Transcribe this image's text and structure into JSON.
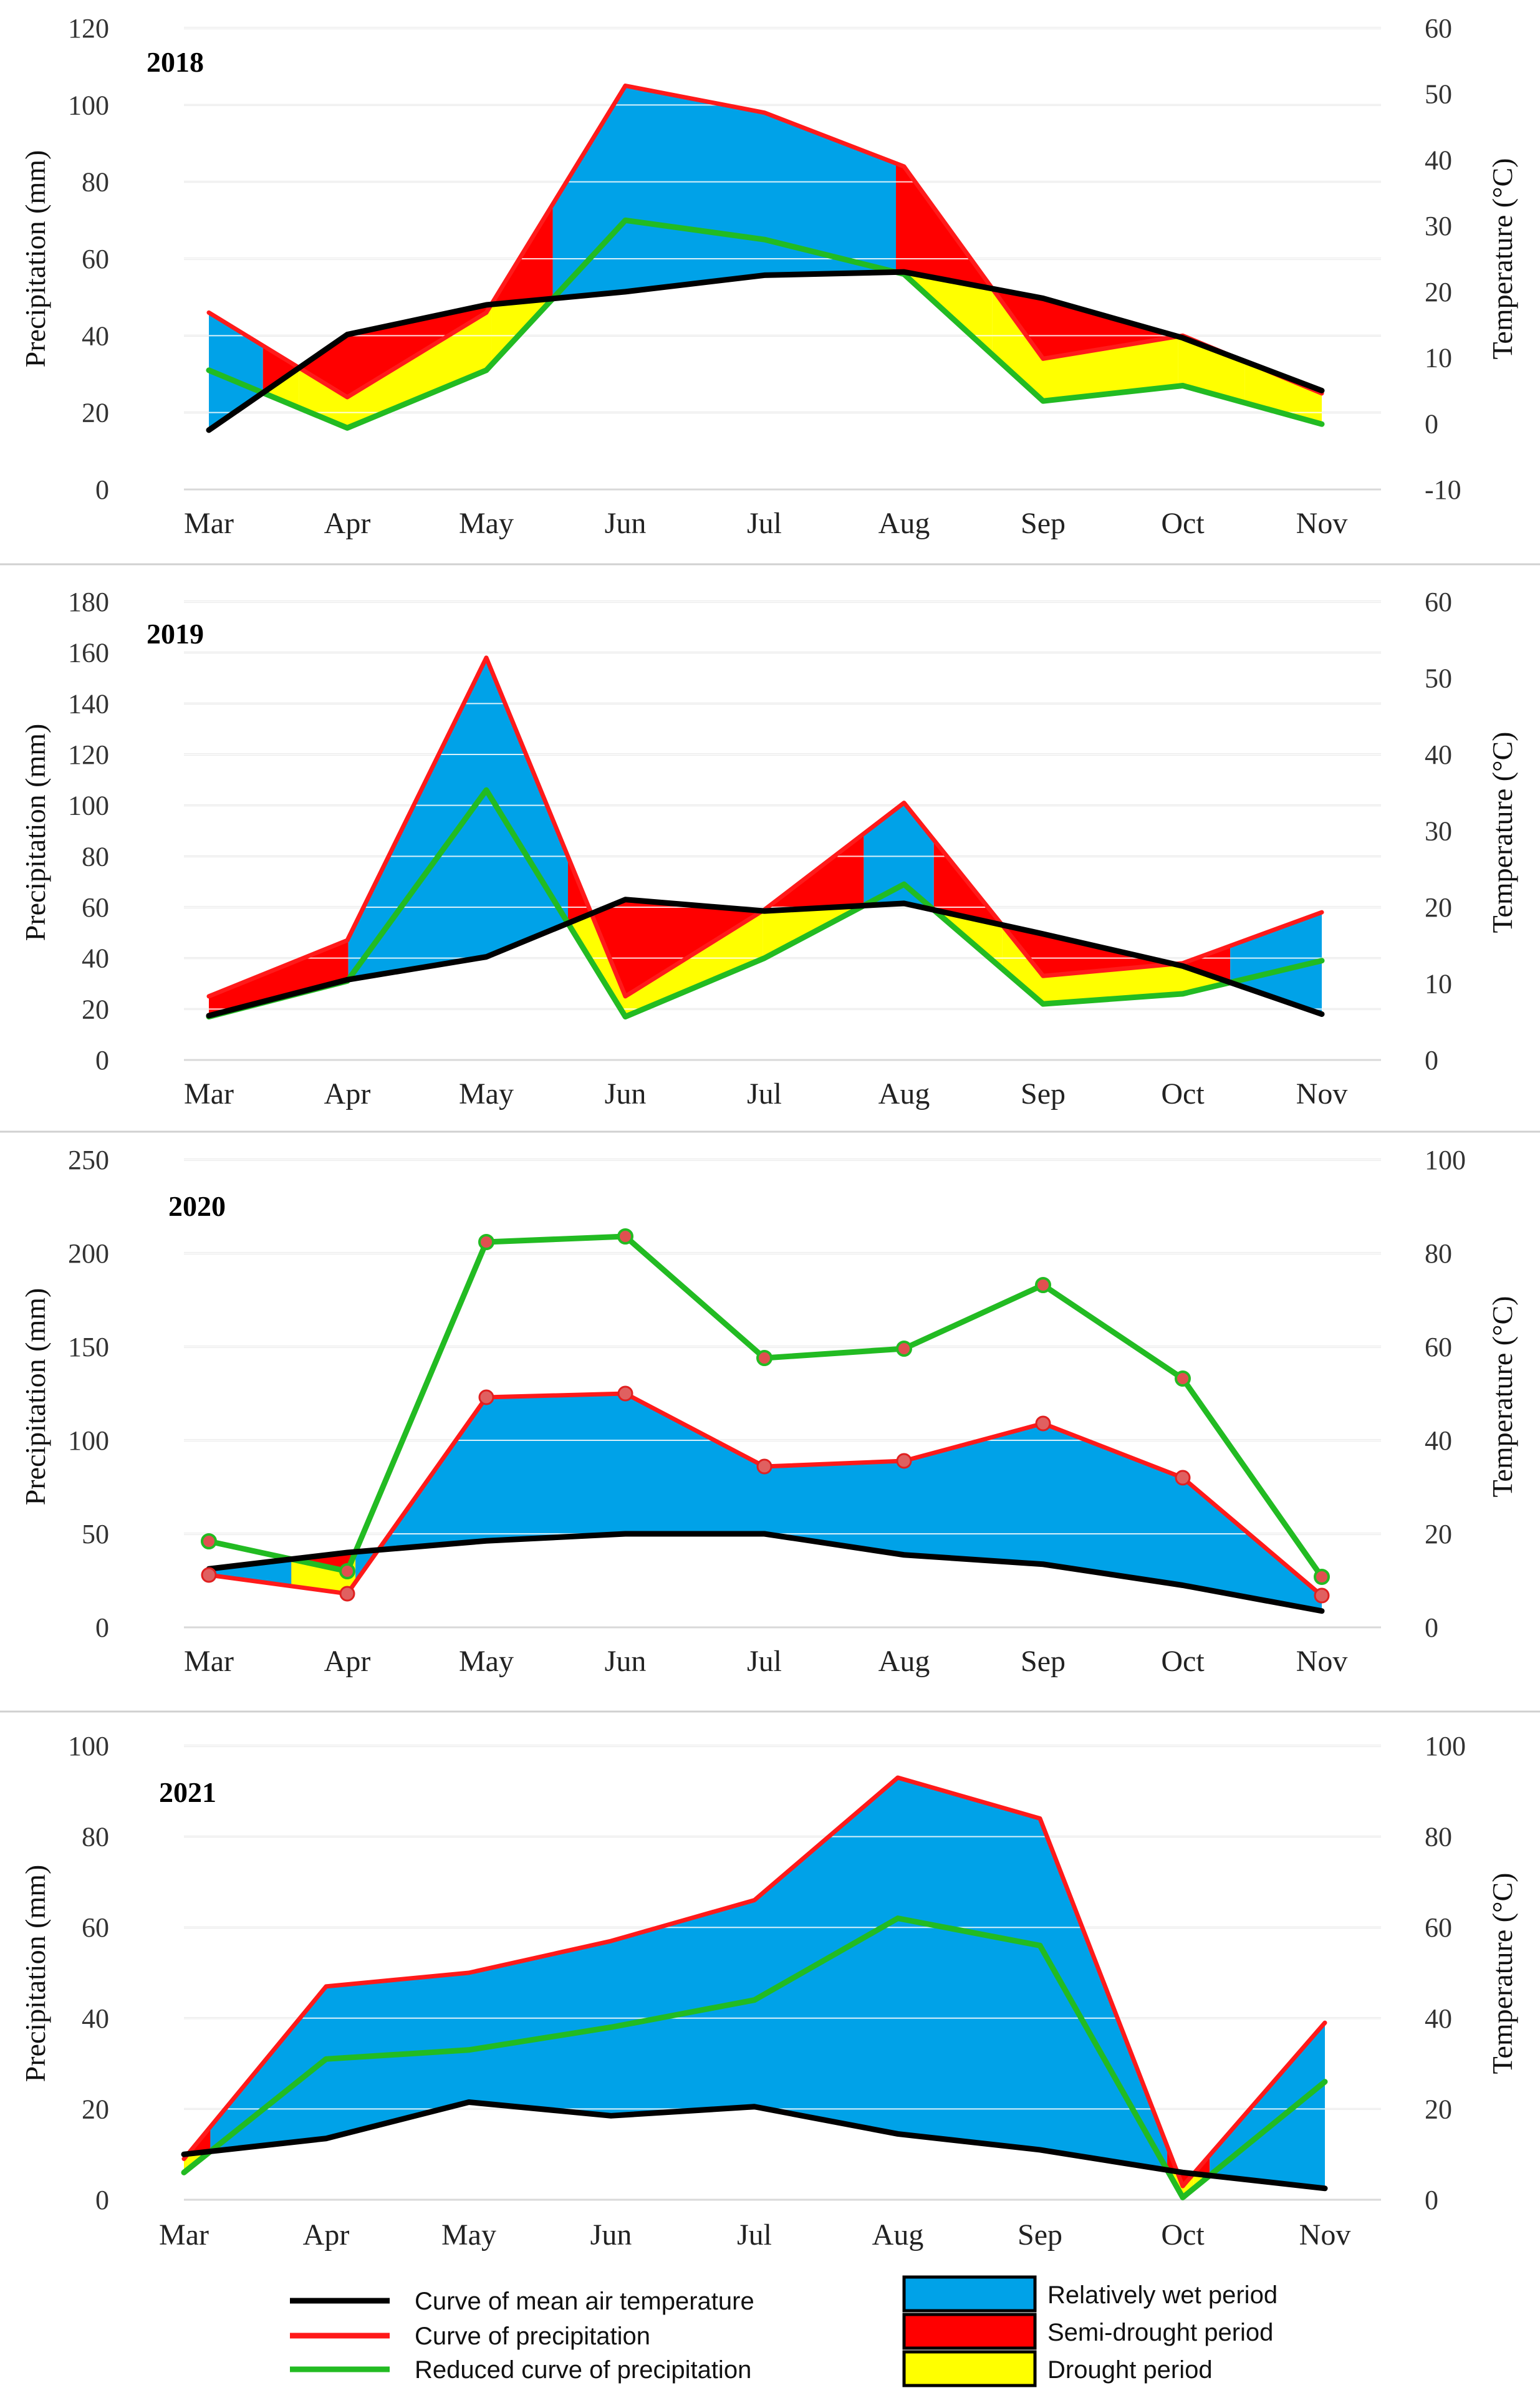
{
  "chart_data": [
    {
      "type": "area",
      "title": "2018",
      "categories": [
        "Mar",
        "Apr",
        "May",
        "Jun",
        "Jul",
        "Aug",
        "Sep",
        "Oct",
        "Nov"
      ],
      "ylabel": "Precipitation (mm)",
      "y2label": "Temperature (°C)",
      "ylim": [
        0,
        120
      ],
      "yticks": [
        0,
        20,
        40,
        60,
        80,
        100,
        120
      ],
      "y2lim": [
        -10,
        60
      ],
      "y2ticks": [
        -10,
        0,
        10,
        20,
        30,
        40,
        50,
        60
      ],
      "markers": false,
      "series": [
        {
          "name": "Curve of mean air temperature",
          "axis": "right",
          "values": [
            -1,
            13.5,
            18,
            20,
            22.5,
            23,
            19,
            13,
            5
          ]
        },
        {
          "name": "Curve of precipitation",
          "axis": "left",
          "values": [
            46,
            24,
            46,
            105,
            98,
            84,
            34,
            40,
            25
          ]
        },
        {
          "name": "Reduced curve of precipitation",
          "axis": "left",
          "values": [
            31,
            16,
            31,
            70,
            65,
            56,
            23,
            27,
            17
          ]
        }
      ]
    },
    {
      "type": "area",
      "title": "2019",
      "categories": [
        "Mar",
        "Apr",
        "May",
        "Jun",
        "Jul",
        "Aug",
        "Sep",
        "Oct",
        "Nov"
      ],
      "ylabel": "Precipitation (mm)",
      "y2label": "Temperature (°C)",
      "ylim": [
        0,
        180
      ],
      "yticks": [
        0,
        20,
        40,
        60,
        80,
        100,
        120,
        140,
        160,
        180
      ],
      "y2lim": [
        0,
        60
      ],
      "y2ticks": [
        0,
        10,
        20,
        30,
        40,
        50,
        60
      ],
      "markers": false,
      "series": [
        {
          "name": "Curve of mean air temperature",
          "axis": "right",
          "values": [
            5.8,
            10.5,
            13.5,
            21,
            19.5,
            20.5,
            16.5,
            12.3,
            6
          ]
        },
        {
          "name": "Curve of precipitation",
          "axis": "left",
          "values": [
            25,
            47,
            158,
            25,
            59,
            101,
            33,
            38,
            58
          ]
        },
        {
          "name": "Reduced curve of precipitation",
          "axis": "left",
          "values": [
            17,
            31,
            106,
            17,
            40,
            69,
            22,
            26,
            39
          ]
        }
      ]
    },
    {
      "type": "area",
      "title": "2020",
      "categories": [
        "Mar",
        "Apr",
        "May",
        "Jun",
        "Jul",
        "Aug",
        "Sep",
        "Oct",
        "Nov"
      ],
      "ylabel": "Precipitation (mm)",
      "y2label": "Temperature (°C)",
      "ylim": [
        0,
        250
      ],
      "yticks": [
        0,
        50,
        100,
        150,
        200,
        250
      ],
      "y2lim": [
        0,
        100
      ],
      "y2ticks": [
        0,
        20,
        40,
        60,
        80,
        100
      ],
      "markers": true,
      "series": [
        {
          "name": "Curve of mean air temperature",
          "axis": "right",
          "values": [
            12.5,
            16,
            18.5,
            20,
            20,
            15.5,
            13.5,
            9,
            3.5
          ]
        },
        {
          "name": "Curve of precipitation",
          "axis": "left",
          "values": [
            28,
            18,
            123,
            125,
            86,
            89,
            109,
            80,
            17
          ]
        },
        {
          "name": "Reduced curve of precipitation",
          "axis": "left",
          "values": [
            46,
            30,
            206,
            209,
            144,
            149,
            183,
            133,
            27
          ]
        }
      ]
    },
    {
      "type": "area",
      "title": "2021",
      "categories": [
        "Mar",
        "Apr",
        "May",
        "Jun",
        "Jul",
        "Aug",
        "Sep",
        "Oct",
        "Nov"
      ],
      "ylabel": "Precipitation (mm)",
      "y2label": "Temperature (°C)",
      "ylim": [
        0,
        100
      ],
      "yticks": [
        0,
        20,
        40,
        60,
        80,
        100
      ],
      "y2lim": [
        0,
        100
      ],
      "y2ticks": [
        0,
        20,
        40,
        60,
        80,
        100
      ],
      "markers": false,
      "series": [
        {
          "name": "Curve of mean air temperature",
          "axis": "right",
          "values": [
            10,
            13.5,
            21.5,
            18.5,
            20.5,
            14.5,
            11,
            6,
            2.5
          ]
        },
        {
          "name": "Curve of precipitation",
          "axis": "left",
          "values": [
            9,
            47,
            50,
            57,
            66,
            93,
            84,
            3,
            39
          ]
        },
        {
          "name": "Reduced curve of precipitation",
          "axis": "left",
          "values": [
            6,
            31,
            33,
            38,
            44,
            62,
            56,
            0.5,
            26
          ]
        }
      ]
    }
  ],
  "legend": {
    "lines": [
      {
        "label": "Curve of mean air temperature",
        "color": "#000000"
      },
      {
        "label": "Curve of precipitation",
        "color": "#ff1a1a"
      },
      {
        "label": "Reduced curve of precipitation",
        "color": "#22bb22"
      }
    ],
    "boxes": [
      {
        "label": "Relatively wet period",
        "color": "#00a2e8"
      },
      {
        "label": "Semi-drought period",
        "color": "#ff0000"
      },
      {
        "label": "Drought period",
        "color": "#ffff00"
      }
    ]
  },
  "colors": {
    "wet": "#00a2e8",
    "semi": "#ff0000",
    "drought": "#ffff00",
    "temp": "#000000",
    "precip": "#ff1a1a",
    "reduced": "#22bb22"
  }
}
